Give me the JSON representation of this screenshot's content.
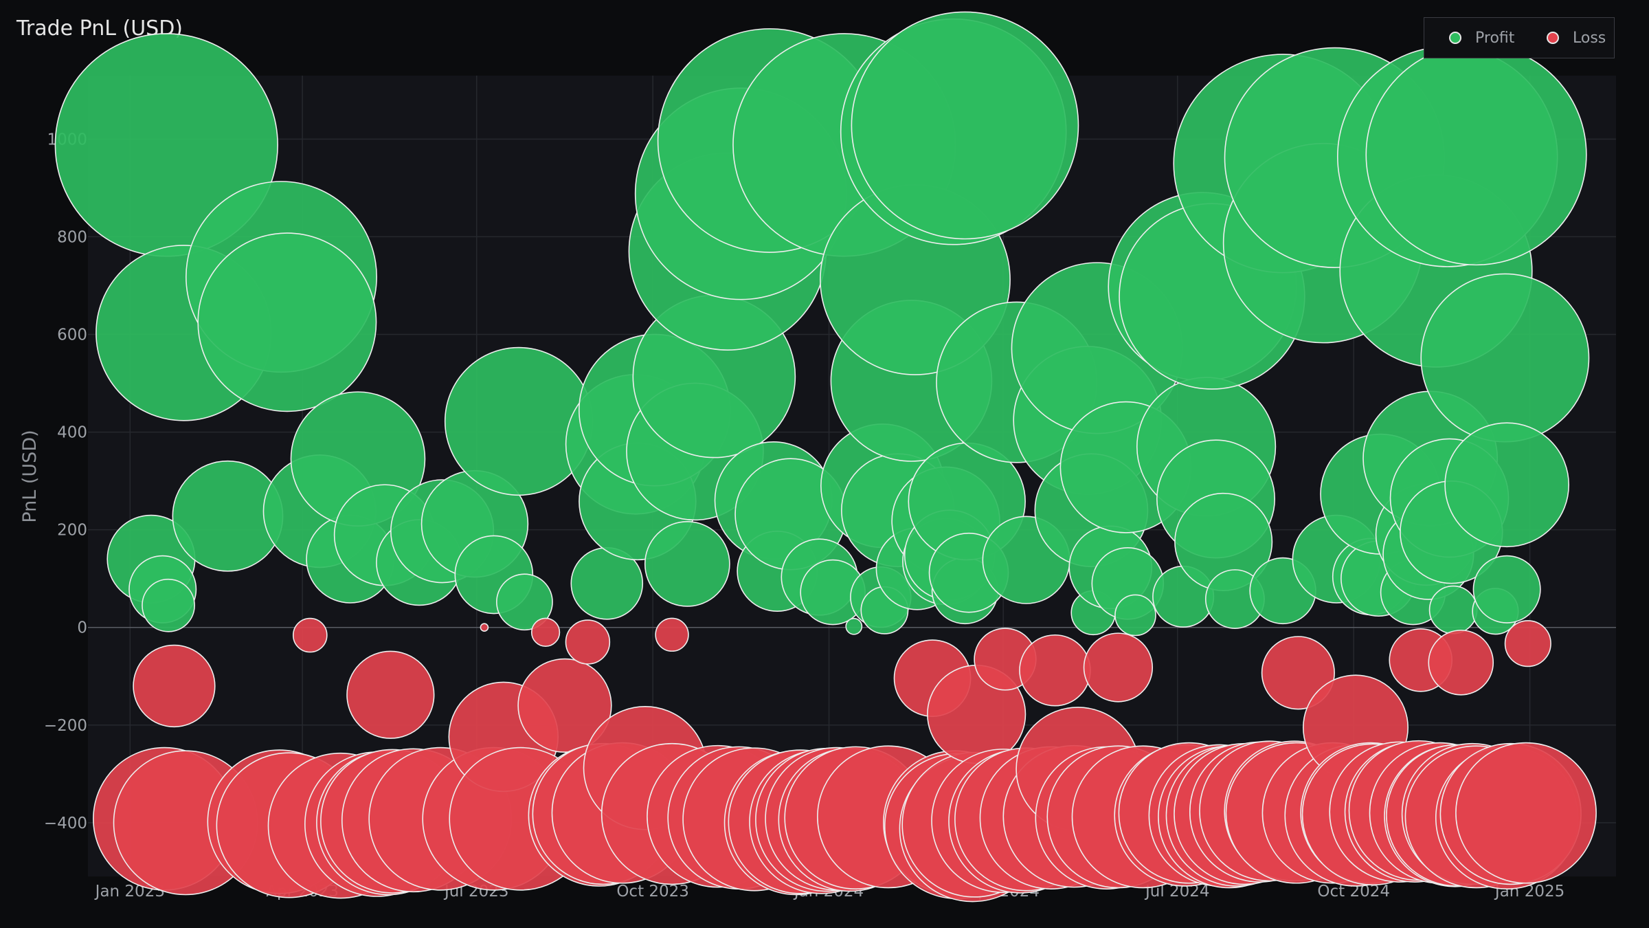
{
  "colors": {
    "profit": "#2ebd5f",
    "loss": "#e2424d",
    "background": "#0b0c0e",
    "plot_bg": "#131419"
  },
  "chart_data": {
    "type": "scatter",
    "title": "Trade PnL (USD)",
    "xlabel": "",
    "ylabel": "PnL (USD)",
    "xlim": [
      "2022-12-10",
      "2025-02-15"
    ],
    "ylim": [
      -510,
      1130
    ],
    "x_ticks": [
      {
        "date": "2023-01-01",
        "label": "Jan 2023"
      },
      {
        "date": "2023-04-01",
        "label": "Apr 2023"
      },
      {
        "date": "2023-07-01",
        "label": "Jul 2023"
      },
      {
        "date": "2023-10-01",
        "label": "Oct 2023"
      },
      {
        "date": "2024-01-01",
        "label": "Jan 2024"
      },
      {
        "date": "2024-04-01",
        "label": "Apr 2024"
      },
      {
        "date": "2024-07-01",
        "label": "Jul 2024"
      },
      {
        "date": "2024-10-01",
        "label": "Oct 2024"
      },
      {
        "date": "2025-01-01",
        "label": "Jan 2025"
      }
    ],
    "y_ticks": [
      {
        "value": 1000,
        "label": "1000"
      },
      {
        "value": 800,
        "label": "800"
      },
      {
        "value": 600,
        "label": "600"
      },
      {
        "value": 400,
        "label": "400"
      },
      {
        "value": 200,
        "label": "200"
      },
      {
        "value": 0,
        "label": "0"
      },
      {
        "value": -200,
        "label": "−200"
      },
      {
        "value": -400,
        "label": "−400"
      }
    ],
    "grid": true,
    "legend_position": "top-right",
    "series": [
      {
        "name": "Profit",
        "color": "#2ebd5f",
        "points": [
          [
            "2023-01-12",
            140
          ],
          [
            "2023-01-18",
            78
          ],
          [
            "2023-01-21",
            45
          ],
          [
            "2023-01-20",
            988
          ],
          [
            "2023-01-29",
            603
          ],
          [
            "2023-02-21",
            228
          ],
          [
            "2023-03-21",
            718
          ],
          [
            "2023-03-24",
            625
          ],
          [
            "2023-04-10",
            238
          ],
          [
            "2023-04-26",
            140
          ],
          [
            "2023-04-30",
            345
          ],
          [
            "2023-05-14",
            189
          ],
          [
            "2023-06-01",
            133
          ],
          [
            "2023-06-13",
            197
          ],
          [
            "2023-06-30",
            212
          ],
          [
            "2023-07-10",
            108
          ],
          [
            "2023-07-23",
            422
          ],
          [
            "2023-07-26",
            52
          ],
          [
            "2023-09-07",
            90
          ],
          [
            "2023-09-22",
            375
          ],
          [
            "2023-09-23",
            258
          ],
          [
            "2023-10-02",
            445
          ],
          [
            "2023-10-19",
            130
          ],
          [
            "2023-10-23",
            360
          ],
          [
            "2023-11-02",
            514
          ],
          [
            "2023-11-09",
            770
          ],
          [
            "2023-11-16",
            888
          ],
          [
            "2023-12-01",
            997
          ],
          [
            "2023-12-03",
            260
          ],
          [
            "2023-12-05",
            115
          ],
          [
            "2023-12-12",
            232
          ],
          [
            "2023-12-27",
            103
          ],
          [
            "2024-01-03",
            72
          ],
          [
            "2024-01-09",
            988
          ],
          [
            "2024-01-14",
            2
          ],
          [
            "2024-01-28",
            62
          ],
          [
            "2024-01-29",
            290
          ],
          [
            "2024-01-30",
            35
          ],
          [
            "2024-02-06",
            240
          ],
          [
            "2024-02-13",
            505
          ],
          [
            "2024-02-15",
            712
          ],
          [
            "2024-02-16",
            120
          ],
          [
            "2024-03-02",
            218
          ],
          [
            "2024-03-02",
            135
          ],
          [
            "2024-03-04",
            148
          ],
          [
            "2024-03-06",
            1015
          ],
          [
            "2024-03-12",
            1028
          ],
          [
            "2024-03-12",
            75
          ],
          [
            "2024-03-13",
            258
          ],
          [
            "2024-03-14",
            112
          ],
          [
            "2024-04-08",
            502
          ],
          [
            "2024-04-13",
            138
          ],
          [
            "2024-05-15",
            424
          ],
          [
            "2024-05-17",
            240
          ],
          [
            "2024-05-18",
            30
          ],
          [
            "2024-05-20",
            572
          ],
          [
            "2024-05-27",
            123
          ],
          [
            "2024-06-04",
            328
          ],
          [
            "2024-06-05",
            90
          ],
          [
            "2024-06-09",
            25
          ],
          [
            "2024-07-04",
            63
          ],
          [
            "2024-07-14",
            698
          ],
          [
            "2024-07-16",
            370
          ],
          [
            "2024-07-19",
            678
          ],
          [
            "2024-07-21",
            263
          ],
          [
            "2024-07-25",
            175
          ],
          [
            "2024-07-31",
            58
          ],
          [
            "2024-08-25",
            950
          ],
          [
            "2024-08-25",
            75
          ],
          [
            "2024-09-15",
            787
          ],
          [
            "2024-09-21",
            962
          ],
          [
            "2024-09-22",
            140
          ],
          [
            "2024-10-10",
            104
          ],
          [
            "2024-10-14",
            100
          ],
          [
            "2024-10-15",
            273
          ],
          [
            "2024-11-01",
            72
          ],
          [
            "2024-11-08",
            190
          ],
          [
            "2024-11-09",
            150
          ],
          [
            "2024-11-10",
            346
          ],
          [
            "2024-11-13",
            730
          ],
          [
            "2024-11-19",
            964
          ],
          [
            "2024-11-20",
            265
          ],
          [
            "2024-11-21",
            195
          ],
          [
            "2024-11-22",
            36
          ],
          [
            "2024-12-04",
            968
          ],
          [
            "2024-12-14",
            33
          ],
          [
            "2024-12-19",
            552
          ],
          [
            "2024-12-20",
            292
          ],
          [
            "2024-12-20",
            78
          ]
        ],
        "pnl_range_by_size": [
          0,
          1030
        ]
      },
      {
        "name": "Loss",
        "color": "#e2424d",
        "points": [
          [
            "2023-01-24",
            -120
          ],
          [
            "2023-01-19",
            -392
          ],
          [
            "2023-01-30",
            -400
          ],
          [
            "2023-03-20",
            -398
          ],
          [
            "2023-03-25",
            -405
          ],
          [
            "2023-04-05",
            -16
          ],
          [
            "2023-04-21",
            -406
          ],
          [
            "2023-05-10",
            -403
          ],
          [
            "2023-05-16",
            -400
          ],
          [
            "2023-05-17",
            -138
          ],
          [
            "2023-05-18",
            -397
          ],
          [
            "2023-05-29",
            -395
          ],
          [
            "2023-06-12",
            -392
          ],
          [
            "2023-07-05",
            0
          ],
          [
            "2023-07-10",
            -392
          ],
          [
            "2023-07-15",
            -224
          ],
          [
            "2023-07-24",
            -392
          ],
          [
            "2023-08-06",
            -10
          ],
          [
            "2023-08-16",
            -160
          ],
          [
            "2023-08-28",
            -30
          ],
          [
            "2023-09-03",
            -385
          ],
          [
            "2023-09-05",
            -382
          ],
          [
            "2023-09-15",
            -380
          ],
          [
            "2023-09-27",
            -288
          ],
          [
            "2023-10-11",
            -15
          ],
          [
            "2023-10-11",
            -382
          ],
          [
            "2023-11-04",
            -387
          ],
          [
            "2023-11-15",
            -390
          ],
          [
            "2023-11-23",
            -393
          ],
          [
            "2023-12-15",
            -400
          ],
          [
            "2023-12-17",
            -398
          ],
          [
            "2023-12-28",
            -398
          ],
          [
            "2023-12-31",
            -394
          ],
          [
            "2024-01-05",
            -392
          ],
          [
            "2024-01-12",
            -394
          ],
          [
            "2024-01-15",
            -390
          ],
          [
            "2024-02-01",
            -388
          ],
          [
            "2024-02-24",
            -104
          ],
          [
            "2024-03-07",
            -400
          ],
          [
            "2024-03-08",
            -407
          ],
          [
            "2024-03-16",
            -412
          ],
          [
            "2024-03-17",
            -404
          ],
          [
            "2024-03-18",
            -178
          ],
          [
            "2024-04-02",
            -65
          ],
          [
            "2024-04-01",
            -396
          ],
          [
            "2024-04-10",
            -397
          ],
          [
            "2024-04-13",
            -393
          ],
          [
            "2024-04-26",
            -390
          ],
          [
            "2024-04-28",
            -88
          ],
          [
            "2024-05-08",
            -387
          ],
          [
            "2024-05-10",
            -290
          ],
          [
            "2024-05-25",
            -390
          ],
          [
            "2024-05-31",
            -388
          ],
          [
            "2024-05-31",
            -82
          ],
          [
            "2024-06-13",
            -388
          ],
          [
            "2024-07-05",
            -385
          ],
          [
            "2024-07-07",
            -380
          ],
          [
            "2024-07-23",
            -385
          ],
          [
            "2024-07-28",
            -388
          ],
          [
            "2024-08-01",
            -385
          ],
          [
            "2024-08-05",
            -382
          ],
          [
            "2024-08-13",
            -378
          ],
          [
            "2024-08-18",
            -376
          ],
          [
            "2024-08-31",
            -376
          ],
          [
            "2024-09-01",
            -380
          ],
          [
            "2024-09-02",
            -93
          ],
          [
            "2024-09-20",
            -380
          ],
          [
            "2024-10-02",
            -385
          ],
          [
            "2024-10-02",
            -205
          ],
          [
            "2024-10-10",
            -380
          ],
          [
            "2024-10-11",
            -383
          ],
          [
            "2024-10-25",
            -378
          ],
          [
            "2024-11-02",
            -378
          ],
          [
            "2024-11-04",
            -375
          ],
          [
            "2024-11-05",
            -67
          ],
          [
            "2024-11-15",
            -380
          ],
          [
            "2024-11-23",
            -386
          ],
          [
            "2024-11-24",
            -385
          ],
          [
            "2024-11-26",
            -72
          ],
          [
            "2024-12-02",
            -382
          ],
          [
            "2024-12-04",
            -388
          ],
          [
            "2024-12-20",
            -390
          ],
          [
            "2024-12-22",
            -382
          ],
          [
            "2024-12-30",
            -380
          ],
          [
            "2024-12-31",
            -33
          ]
        ],
        "pnl_range_by_size": [
          -412,
          0
        ]
      }
    ]
  }
}
